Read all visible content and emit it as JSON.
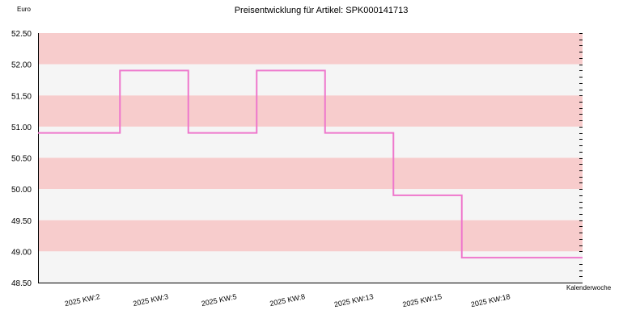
{
  "chart_data": {
    "type": "line",
    "title": "Preisentwicklung für Artikel: SPK000141713",
    "ylabel": "Euro",
    "xlabel": "Kalenderwoche",
    "ylim": [
      48.5,
      52.5
    ],
    "y_ticks": [
      "48.50",
      "49.00",
      "49.50",
      "50.00",
      "50.50",
      "51.00",
      "51.50",
      "52.00",
      "52.50"
    ],
    "categories": [
      "2025 KW:2",
      "2025 KW:3",
      "2025 KW:5",
      "2025 KW:8",
      "2025 KW:13",
      "2025 KW:15",
      "2025 KW:18"
    ],
    "step": true,
    "series": [
      {
        "values": [
          50.9,
          51.9,
          50.9,
          51.9,
          50.9,
          49.9,
          48.9
        ]
      }
    ],
    "colors": {
      "line": "#ee77cc",
      "band_dark": "#f7cccc",
      "band_light": "#f5f5f5",
      "axis": "#000000"
    },
    "grid": false
  }
}
